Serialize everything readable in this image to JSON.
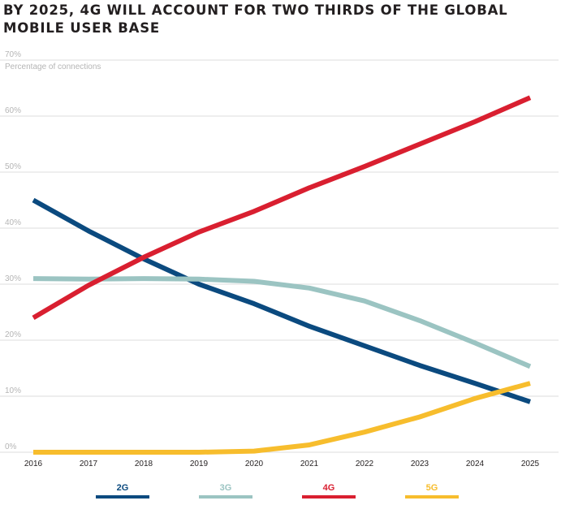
{
  "title": {
    "line1": "BY 2025, 4G WILL ACCOUNT FOR TWO THIRDS OF THE GLOBAL",
    "line2": "MOBILE USER BASE"
  },
  "chart_data": {
    "type": "line",
    "title": "BY 2025, 4G WILL ACCOUNT FOR TWO THIRDS OF THE GLOBAL MOBILE USER BASE",
    "xlabel": "",
    "ylabel": "Percentage of connections",
    "ylim": [
      0,
      70
    ],
    "yticks": [
      0,
      10,
      20,
      30,
      40,
      50,
      60,
      70
    ],
    "ytick_labels": [
      "0%",
      "10%",
      "20%",
      "30%",
      "40%",
      "50%",
      "60%",
      "70%"
    ],
    "grid": true,
    "legend_position": "bottom",
    "x": [
      "2016",
      "2017",
      "2018",
      "2019",
      "2020",
      "2021",
      "2022",
      "2023",
      "2024",
      "2025"
    ],
    "series": [
      {
        "name": "2G",
        "color": "#0b4a7f",
        "values": [
          45,
          39.5,
          34.5,
          30,
          26.5,
          22.5,
          19,
          15.5,
          12.3,
          9
        ]
      },
      {
        "name": "3G",
        "color": "#9bc4c2",
        "values": [
          31,
          30.9,
          31,
          30.9,
          30.5,
          29.3,
          27,
          23.5,
          19.5,
          15.3
        ]
      },
      {
        "name": "4G",
        "color": "#d91f30",
        "values": [
          24,
          29.8,
          34.8,
          39.3,
          43,
          47.2,
          51,
          55,
          59,
          63.3
        ]
      },
      {
        "name": "5G",
        "color": "#f7bd2d",
        "values": [
          0,
          0,
          0,
          0,
          0.2,
          1.3,
          3.6,
          6.3,
          9.6,
          12.3
        ]
      }
    ]
  }
}
